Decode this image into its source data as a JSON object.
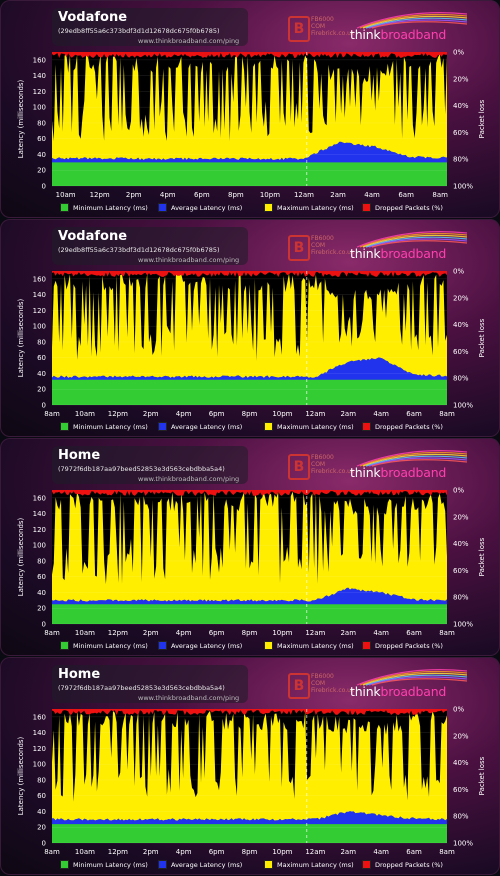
{
  "panels": [
    {
      "title": "Vodafone",
      "id": "(29edb8ff55a6c373bdf3d1d12678dc675f0b6785)",
      "url": "www.thinkbroadband.com/ping",
      "x_ticks": [
        "10am",
        "12pm",
        "2pm",
        "4pm",
        "6pm",
        "8pm",
        "10pm",
        "12am",
        "2am",
        "4am",
        "6am",
        "8am"
      ]
    },
    {
      "title": "Vodafone",
      "id": "(29edb8ff55a6c373bdf3d1d12678dc675f0b6785)",
      "url": "www.thinkbroadband.com/ping",
      "x_ticks": [
        "8am",
        "10am",
        "12pm",
        "2pm",
        "4pm",
        "6pm",
        "8pm",
        "10pm",
        "12am",
        "2am",
        "4am",
        "6am",
        "8am"
      ]
    },
    {
      "title": "Home",
      "id": "(7972f6db187aa97beed52853e3d563cebdbba5a4)",
      "url": "www.thinkbroadband.com/ping",
      "x_ticks": [
        "8am",
        "10am",
        "12pm",
        "2pm",
        "4pm",
        "6pm",
        "8pm",
        "10pm",
        "12am",
        "2am",
        "4am",
        "6am",
        "8am"
      ]
    },
    {
      "title": "Home",
      "id": "(7972f6db187aa97beed52853e3d563cebdbba5a4)",
      "url": "www.thinkbroadband.com/ping",
      "x_ticks": [
        "8am",
        "10am",
        "12pm",
        "2pm",
        "4pm",
        "6pm",
        "8pm",
        "10pm",
        "12am",
        "2am",
        "4am",
        "6am",
        "8am"
      ]
    }
  ],
  "branding": {
    "fb_mark": "B",
    "fb_text": [
      "FB6000",
      "COM",
      "Firebrick.co.uk"
    ],
    "logo_think": "think",
    "logo_broadband": "broadband"
  },
  "colors": {
    "min": "#33cc33",
    "avg": "#2233ee",
    "max": "#ffee00",
    "drop": "#ee1111",
    "bg": "#000000"
  },
  "chart_data": [
    {
      "type": "area",
      "title": "Vodafone",
      "ylabel": "Latency (milliseconds)",
      "ylabel_right": "Packet loss",
      "y_ticks": [
        0,
        20,
        40,
        60,
        80,
        100,
        120,
        140,
        160
      ],
      "ylim": [
        0,
        170
      ],
      "y2_ticks": [
        "0%",
        "20%",
        "40%",
        "60%",
        "80%",
        "100%"
      ],
      "x_ticks": [
        "10am",
        "12pm",
        "2pm",
        "4pm",
        "6pm",
        "8pm",
        "10pm",
        "12am",
        "2am",
        "4am",
        "6am",
        "8am"
      ],
      "series": [
        {
          "name": "Minimum Latency (ms)",
          "values": [
            30,
            30,
            30,
            30,
            30,
            30,
            30,
            30,
            30,
            30,
            30,
            30
          ]
        },
        {
          "name": "Average Latency (ms)",
          "values": [
            35,
            35,
            35,
            34,
            35,
            35,
            34,
            35,
            55,
            50,
            37,
            36
          ]
        },
        {
          "name": "Maximum Latency (ms)",
          "values": [
            168,
            168,
            168,
            168,
            168,
            168,
            168,
            168,
            150,
            155,
            168,
            168
          ]
        },
        {
          "name": "Dropped Packets (%)",
          "values": [
            0,
            0,
            0,
            0,
            0,
            0,
            0,
            0,
            0,
            0,
            0,
            0
          ]
        }
      ]
    },
    {
      "type": "area",
      "title": "Vodafone",
      "ylabel": "Latency (milliseconds)",
      "ylabel_right": "Packet loss",
      "y_ticks": [
        0,
        20,
        40,
        60,
        80,
        100,
        120,
        140,
        160
      ],
      "ylim": [
        0,
        170
      ],
      "y2_ticks": [
        "0%",
        "20%",
        "40%",
        "60%",
        "80%",
        "100%"
      ],
      "x_ticks": [
        "8am",
        "10am",
        "12pm",
        "2pm",
        "4pm",
        "6pm",
        "8pm",
        "10pm",
        "12am",
        "2am",
        "4am",
        "6am",
        "8am"
      ],
      "series": [
        {
          "name": "Minimum Latency (ms)",
          "values": [
            32,
            32,
            32,
            32,
            32,
            32,
            32,
            32,
            32,
            32,
            32,
            32,
            32
          ]
        },
        {
          "name": "Average Latency (ms)",
          "values": [
            36,
            36,
            36,
            36,
            36,
            36,
            36,
            36,
            36,
            55,
            60,
            38,
            37
          ]
        },
        {
          "name": "Maximum Latency (ms)",
          "values": [
            168,
            168,
            168,
            168,
            168,
            168,
            168,
            168,
            168,
            150,
            150,
            168,
            168
          ]
        },
        {
          "name": "Dropped Packets (%)",
          "values": [
            0,
            0,
            0,
            0,
            0,
            0,
            0,
            0,
            0,
            0,
            0,
            0,
            0
          ]
        }
      ]
    },
    {
      "type": "area",
      "title": "Home",
      "ylabel": "Latency (milliseconds)",
      "ylabel_right": "Packet loss",
      "y_ticks": [
        0,
        20,
        40,
        60,
        80,
        100,
        120,
        140,
        160
      ],
      "ylim": [
        0,
        170
      ],
      "y2_ticks": [
        "0%",
        "20%",
        "40%",
        "60%",
        "80%",
        "100%"
      ],
      "x_ticks": [
        "8am",
        "10am",
        "12pm",
        "2pm",
        "4pm",
        "6pm",
        "8pm",
        "10pm",
        "12am",
        "2am",
        "4am",
        "6am",
        "8am"
      ],
      "series": [
        {
          "name": "Minimum Latency (ms)",
          "values": [
            25,
            25,
            25,
            25,
            25,
            25,
            25,
            25,
            25,
            25,
            25,
            25,
            25
          ]
        },
        {
          "name": "Average Latency (ms)",
          "values": [
            30,
            30,
            30,
            30,
            30,
            30,
            30,
            30,
            30,
            45,
            40,
            31,
            30
          ]
        },
        {
          "name": "Maximum Latency (ms)",
          "values": [
            168,
            168,
            168,
            168,
            168,
            168,
            168,
            168,
            168,
            160,
            160,
            168,
            168
          ]
        },
        {
          "name": "Dropped Packets (%)",
          "values": [
            0,
            0,
            0,
            0,
            0,
            0,
            0,
            0,
            0,
            0,
            0,
            0,
            0
          ]
        }
      ]
    },
    {
      "type": "area",
      "title": "Home",
      "ylabel": "Latency (milliseconds)",
      "ylabel_right": "Packet loss",
      "y_ticks": [
        0,
        20,
        40,
        60,
        80,
        100,
        120,
        140,
        160
      ],
      "ylim": [
        0,
        170
      ],
      "y2_ticks": [
        "0%",
        "20%",
        "40%",
        "60%",
        "80%",
        "100%"
      ],
      "x_ticks": [
        "8am",
        "10am",
        "12pm",
        "2pm",
        "4pm",
        "6pm",
        "8pm",
        "10pm",
        "12am",
        "2am",
        "4am",
        "6am",
        "8am"
      ],
      "series": [
        {
          "name": "Minimum Latency (ms)",
          "values": [
            24,
            24,
            24,
            24,
            24,
            24,
            24,
            24,
            24,
            24,
            24,
            24,
            24
          ]
        },
        {
          "name": "Average Latency (ms)",
          "values": [
            30,
            30,
            30,
            30,
            30,
            30,
            30,
            30,
            30,
            40,
            35,
            31,
            30
          ]
        },
        {
          "name": "Maximum Latency (ms)",
          "values": [
            168,
            168,
            168,
            168,
            168,
            168,
            168,
            168,
            168,
            160,
            160,
            168,
            168
          ]
        },
        {
          "name": "Dropped Packets (%)",
          "values": [
            0,
            0,
            0,
            0,
            0,
            0,
            0,
            0,
            0,
            0,
            0,
            0,
            0
          ]
        }
      ]
    }
  ]
}
